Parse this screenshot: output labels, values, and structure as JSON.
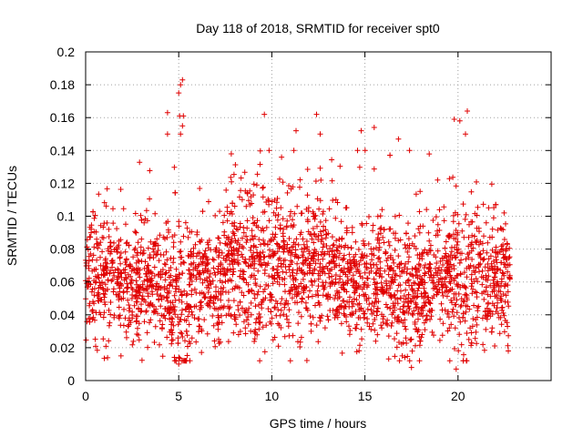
{
  "chart_data": {
    "type": "scatter",
    "title": "Day 118 of 2018, SRMTID for receiver spt0",
    "xlabel": "GPS time / hours",
    "ylabel": "SRMTID / TECUs",
    "xlim": [
      0,
      25
    ],
    "ylim": [
      0,
      0.2
    ],
    "xticks": [
      0,
      5,
      10,
      15,
      20
    ],
    "yticks": [
      0,
      0.02,
      0.04,
      0.06,
      0.08,
      0.1,
      0.12,
      0.14,
      0.16,
      0.18,
      0.2
    ],
    "grid": true,
    "marker": "+",
    "color": "#e00000",
    "series": [
      {
        "name": "SRMTID",
        "x_range": [
          0,
          22.8
        ],
        "point_count": 2800,
        "typical_band": [
          0.03,
          0.09
        ],
        "outliers": [
          {
            "x": 4.4,
            "y": 0.163
          },
          {
            "x": 5.0,
            "y": 0.175
          },
          {
            "x": 5.1,
            "y": 0.18
          },
          {
            "x": 5.2,
            "y": 0.183
          },
          {
            "x": 5.05,
            "y": 0.161
          },
          {
            "x": 5.25,
            "y": 0.161
          },
          {
            "x": 5.2,
            "y": 0.155
          },
          {
            "x": 5.1,
            "y": 0.15
          },
          {
            "x": 4.4,
            "y": 0.15
          },
          {
            "x": 9.6,
            "y": 0.162
          },
          {
            "x": 11.3,
            "y": 0.152
          },
          {
            "x": 12.4,
            "y": 0.162
          },
          {
            "x": 12.6,
            "y": 0.15
          },
          {
            "x": 14.8,
            "y": 0.152
          },
          {
            "x": 15.5,
            "y": 0.154
          },
          {
            "x": 16.8,
            "y": 0.147
          },
          {
            "x": 19.8,
            "y": 0.159
          },
          {
            "x": 20.1,
            "y": 0.158
          },
          {
            "x": 20.5,
            "y": 0.164
          },
          {
            "x": 20.4,
            "y": 0.15
          },
          {
            "x": 5.0,
            "y": 0.01
          },
          {
            "x": 5.6,
            "y": 0.012
          },
          {
            "x": 17.5,
            "y": 0.008
          },
          {
            "x": 19.9,
            "y": 0.007
          },
          {
            "x": 1.9,
            "y": 0.015
          },
          {
            "x": 22.7,
            "y": 0.018
          }
        ]
      }
    ]
  }
}
